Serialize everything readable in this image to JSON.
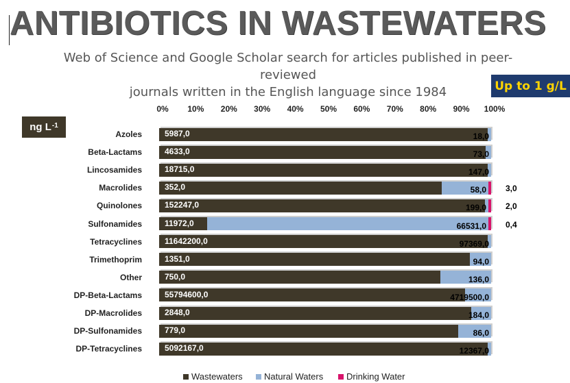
{
  "header": {
    "title": "ANTIBIOTICS IN WASTEWATERS",
    "subtitle_line1": "Web of Science and Google Scholar search for articles published in peer-reviewed",
    "subtitle_line2": "journals written in the English language since 1984",
    "badge": "Up to 1 g/L",
    "unit": "ng L",
    "unit_exp": "-1"
  },
  "chart_data": {
    "type": "bar",
    "orientation": "horizontal",
    "stacked": "percent",
    "x_ticks": [
      "0%",
      "10%",
      "20%",
      "30%",
      "40%",
      "50%",
      "60%",
      "70%",
      "80%",
      "90%",
      "100%"
    ],
    "xlim": [
      0,
      100
    ],
    "categories": [
      "Azoles",
      "Beta-Lactams",
      "Lincosamides",
      "Macrolides",
      "Quinolones",
      "Sulfonamides",
      "Tetracyclines",
      "Trimethoprim",
      "Other",
      "DP-Beta-Lactams",
      "DP-Macrolides",
      "DP-Sulfonamides",
      "DP-Tetracyclines"
    ],
    "series": [
      {
        "name": "Wastewaters",
        "color": "#3f3829",
        "values": [
          5987.0,
          4633.0,
          18715.0,
          352.0,
          152247.0,
          11972.0,
          11642200.0,
          1351.0,
          750.0,
          55794600.0,
          2848.0,
          779.0,
          5092167.0
        ],
        "labels": [
          "5987,0",
          "4633,0",
          "18715,0",
          "352,0",
          "152247,0",
          "11972,0",
          "11642200,0",
          "1351,0",
          "750,0",
          "55794600,0",
          "2848,0",
          "779,0",
          "5092167,0"
        ]
      },
      {
        "name": "Natural Waters",
        "color": "#95b3d7",
        "values": [
          18.0,
          73.0,
          147.0,
          58.0,
          199.0,
          66531.0,
          97369.0,
          94.0,
          136.0,
          4719500.0,
          184.0,
          86.0,
          12367.0
        ],
        "labels": [
          "18,0",
          "73,0",
          "147,0",
          "58,0",
          "199,0",
          "66531,0",
          "97369,0",
          "94,0",
          "136,0",
          "4719500,0",
          "184,0",
          "86,0",
          "12367,0"
        ]
      },
      {
        "name": "Drinking Water",
        "color": "#d8146b",
        "values": [
          0,
          0,
          0,
          3.0,
          2.0,
          0.4,
          0,
          0,
          0,
          0,
          0,
          0,
          0
        ],
        "labels": [
          "",
          "",
          "",
          "3,0",
          "2,0",
          "0,4",
          "",
          "",
          "",
          "",
          "",
          "",
          ""
        ]
      }
    ],
    "legend_position": "bottom",
    "grid": false
  }
}
